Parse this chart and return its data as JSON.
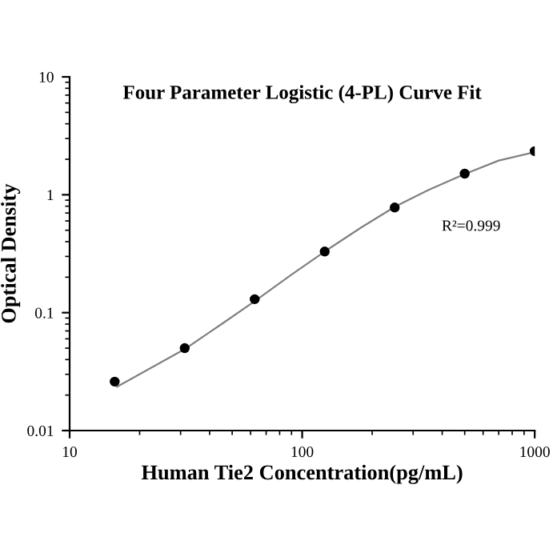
{
  "chart_data": {
    "type": "scatter",
    "title": "Four Parameter Logistic (4-PL) Curve Fit",
    "xlabel": "Human Tie2 Concentration(pg/mL)",
    "ylabel": "Optical Density",
    "log": "xy",
    "xlim": [
      10,
      1000
    ],
    "ylim": [
      0.01,
      10
    ],
    "xticks": [
      10,
      100,
      1000
    ],
    "yticks": [
      0.01,
      0.1,
      1,
      10
    ],
    "grid": false,
    "legend": false,
    "marker": "circle",
    "annotations": [
      "R²=0.999"
    ],
    "series": [
      {
        "color": "#000000",
        "x": [
          15.625,
          31.25,
          62.5,
          125,
          250,
          500,
          1000
        ],
        "values": [
          0.026,
          0.05,
          0.13,
          0.33,
          0.78,
          1.51,
          2.34
        ]
      },
      {
        "type": "line",
        "color": "#808080",
        "marker": "none",
        "line_style": "solid",
        "x": [
          16,
          31.25,
          45,
          62.5,
          90,
          125,
          180,
          250,
          350,
          500,
          700,
          1000
        ],
        "values": [
          0.0235,
          0.049,
          0.08,
          0.125,
          0.21,
          0.33,
          0.53,
          0.79,
          1.1,
          1.5,
          1.95,
          2.3
        ]
      }
    ]
  }
}
